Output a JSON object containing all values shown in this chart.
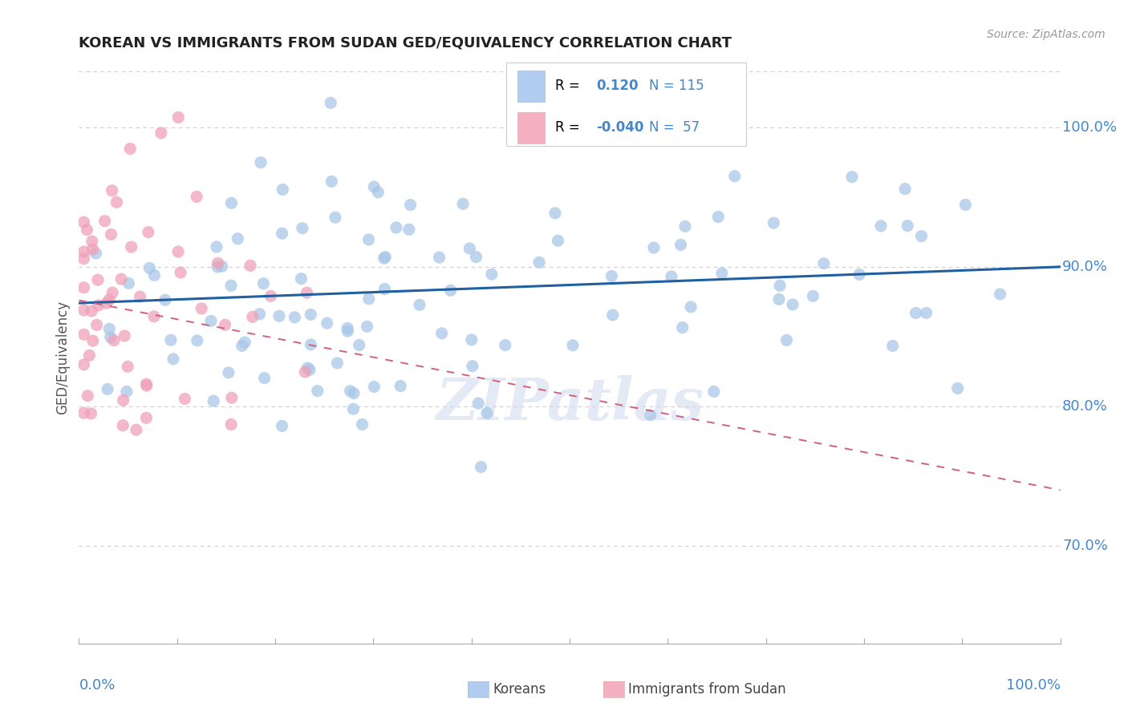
{
  "title": "KOREAN VS IMMIGRANTS FROM SUDAN GED/EQUIVALENCY CORRELATION CHART",
  "source": "Source: ZipAtlas.com",
  "ylabel": "GED/Equivalency",
  "right_ytick_labels": [
    "70.0%",
    "80.0%",
    "90.0%",
    "100.0%"
  ],
  "right_ytick_values": [
    0.7,
    0.8,
    0.9,
    1.0
  ],
  "korean_R": 0.12,
  "korean_N": 115,
  "sudan_R": -0.04,
  "sudan_N": 57,
  "blue_dot_color": "#a8c8e8",
  "pink_dot_color": "#f0a0b8",
  "blue_line_color": "#2060a0",
  "pink_line_color": "#d06080",
  "watermark": "ZIPatlas",
  "xlim": [
    0.0,
    1.0
  ],
  "ylim": [
    0.63,
    1.04
  ],
  "blue_legend_box": "#b0ccee",
  "pink_legend_box": "#f4b0c0",
  "legend_border": "#cccccc",
  "grid_color": "#cccccc",
  "bottom_spine_color": "#aaaaaa",
  "tick_color": "#4488cc",
  "title_color": "#222222",
  "ylabel_color": "#555555",
  "source_color": "#999999",
  "bottom_legend_color": "#444444"
}
